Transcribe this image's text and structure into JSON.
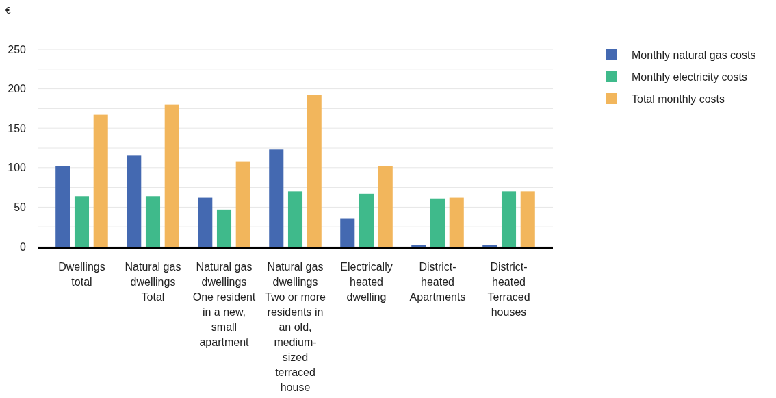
{
  "chart_data": {
    "type": "bar",
    "ylabel": "€",
    "categories": [
      "Dwellings total",
      "Natural gas dwellings Total",
      "Natural gas dwellings One resident in a new, small apartment",
      "Natural gas dwellings Two or more residents in an old, medium-sized terraced house",
      "Electrically heated dwelling",
      "District-heated Apartments",
      "District-heated Terraced houses"
    ],
    "series": [
      {
        "name": "Monthly natural gas costs",
        "color": "#4469b1",
        "values": [
          102,
          116,
          62,
          123,
          36,
          2,
          2
        ]
      },
      {
        "name": "Monthly electricity costs",
        "color": "#3fba8b",
        "values": [
          64,
          64,
          47,
          70,
          67,
          61,
          70
        ]
      },
      {
        "name": "Total monthly costs",
        "color": "#f2b65c",
        "values": [
          167,
          180,
          108,
          192,
          102,
          62,
          70
        ]
      }
    ],
    "ylim": [
      0,
      250
    ],
    "yticks": [
      0,
      {
        "value": 25,
        "label": null
      },
      50,
      {
        "value": 75,
        "label": null
      },
      100,
      {
        "value": 125,
        "label": null
      },
      150,
      {
        "value": 175,
        "label": null
      },
      200,
      {
        "value": 225,
        "label": null
      },
      250
    ],
    "grid": "y",
    "legend": "top right"
  }
}
